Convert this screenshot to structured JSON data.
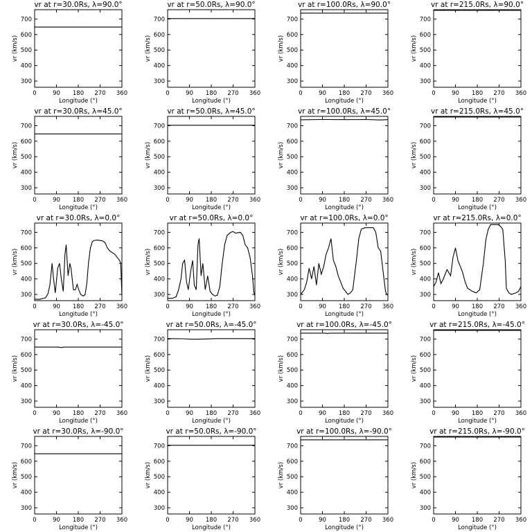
{
  "xlabel": "Longitude (°)",
  "ylabel": "vr (km/s)",
  "xticks": [
    0,
    90,
    180,
    270,
    360
  ],
  "yticks": [
    300,
    400,
    500,
    600,
    700
  ],
  "xlim": [
    0,
    360
  ],
  "ylim": [
    260,
    760
  ],
  "radii": [
    "30.0",
    "50.0",
    "100.0",
    "215.0"
  ],
  "latitudes": [
    "90.0",
    "45.0",
    "0.0",
    "-45.0",
    "-90.0"
  ],
  "chart_data": [
    {
      "type": "line",
      "title": "vr at r=30.0Rs, λ=90.0°",
      "x": [
        0,
        360
      ],
      "y": [
        648,
        648
      ],
      "xlim": [
        0,
        360
      ],
      "ylim": [
        260,
        760
      ]
    },
    {
      "type": "line",
      "title": "vr at r=50.0Rs, λ=90.0°",
      "x": [
        0,
        360
      ],
      "y": [
        703,
        703
      ],
      "xlim": [
        0,
        360
      ],
      "ylim": [
        260,
        760
      ]
    },
    {
      "type": "line",
      "title": "vr at r=100.0Rs, λ=90.0°",
      "x": [
        0,
        360
      ],
      "y": [
        738,
        738
      ],
      "xlim": [
        0,
        360
      ],
      "ylim": [
        260,
        760
      ]
    },
    {
      "type": "line",
      "title": "vr at r=215.0Rs, λ=90.0°",
      "x": [
        0,
        360
      ],
      "y": [
        756,
        756
      ],
      "xlim": [
        0,
        360
      ],
      "ylim": [
        260,
        760
      ]
    },
    {
      "type": "line",
      "title": "vr at r=30.0Rs, λ=45.0°",
      "x": [
        0,
        360
      ],
      "y": [
        647,
        647
      ],
      "xlim": [
        0,
        360
      ],
      "ylim": [
        260,
        760
      ]
    },
    {
      "type": "line",
      "title": "vr at r=50.0Rs, λ=45.0°",
      "x": [
        0,
        360
      ],
      "y": [
        703,
        703
      ],
      "xlim": [
        0,
        360
      ],
      "ylim": [
        260,
        760
      ]
    },
    {
      "type": "line",
      "title": "vr at r=100.0Rs, λ=45.0°",
      "x": [
        0,
        90,
        180,
        270,
        330,
        360
      ],
      "y": [
        738,
        740,
        739,
        740,
        737,
        739
      ],
      "xlim": [
        0,
        360
      ],
      "ylim": [
        260,
        760
      ]
    },
    {
      "type": "line",
      "title": "vr at r=215.0Rs, λ=45.0°",
      "x": [
        0,
        360
      ],
      "y": [
        756,
        756
      ],
      "xlim": [
        0,
        360
      ],
      "ylim": [
        260,
        760
      ]
    },
    {
      "type": "line",
      "title": "vr at r=30.0Rs, λ=0.0°",
      "xlim": [
        0,
        360
      ],
      "ylim": [
        260,
        760
      ],
      "x": [
        0,
        20,
        35,
        45,
        55,
        63,
        72,
        78,
        85,
        95,
        103,
        110,
        118,
        125,
        130,
        138,
        145,
        150,
        160,
        168,
        175,
        182,
        190,
        200,
        208,
        215,
        222,
        230,
        238,
        245,
        260,
        280,
        290,
        300,
        310,
        320,
        330,
        340,
        350,
        355,
        360
      ],
      "y": [
        270,
        268,
        275,
        278,
        305,
        360,
        500,
        400,
        310,
        470,
        500,
        400,
        320,
        560,
        620,
        420,
        500,
        470,
        330,
        330,
        365,
        330,
        300,
        290,
        298,
        370,
        500,
        600,
        640,
        648,
        650,
        645,
        635,
        600,
        580,
        570,
        560,
        540,
        520,
        500,
        290
      ]
    },
    {
      "type": "line",
      "title": "vr at r=50.0Rs, λ=0.0°",
      "xlim": [
        0,
        360
      ],
      "ylim": [
        260,
        760
      ],
      "x": [
        0,
        20,
        35,
        45,
        55,
        62,
        70,
        78,
        85,
        95,
        103,
        110,
        118,
        125,
        130,
        138,
        145,
        155,
        165,
        175,
        185,
        195,
        205,
        215,
        225,
        235,
        245,
        260,
        270,
        280,
        300,
        310,
        320,
        330,
        340,
        350,
        355,
        360
      ],
      "y": [
        275,
        275,
        285,
        330,
        400,
        500,
        520,
        380,
        330,
        450,
        520,
        360,
        330,
        620,
        660,
        420,
        500,
        330,
        420,
        320,
        300,
        290,
        295,
        350,
        500,
        620,
        680,
        700,
        705,
        695,
        700,
        680,
        620,
        600,
        540,
        420,
        320,
        290
      ]
    },
    {
      "type": "line",
      "title": "vr at r=100.0Rs, λ=0.0°",
      "xlim": [
        0,
        360
      ],
      "ylim": [
        260,
        760
      ],
      "x": [
        0,
        15,
        25,
        35,
        45,
        55,
        65,
        75,
        85,
        95,
        105,
        115,
        125,
        135,
        145,
        155,
        165,
        175,
        185,
        195,
        205,
        215,
        230,
        240,
        250,
        265,
        280,
        300,
        310,
        320,
        330,
        340,
        350,
        355,
        360
      ],
      "y": [
        300,
        330,
        380,
        470,
        400,
        480,
        360,
        500,
        430,
        480,
        560,
        600,
        660,
        520,
        480,
        420,
        380,
        340,
        320,
        300,
        310,
        330,
        520,
        660,
        720,
        730,
        730,
        730,
        700,
        600,
        580,
        450,
        320,
        300,
        295
      ]
    },
    {
      "type": "line",
      "title": "vr at r=215.0Rs, λ=0.0°",
      "xlim": [
        0,
        360
      ],
      "ylim": [
        260,
        760
      ],
      "x": [
        0,
        10,
        20,
        30,
        40,
        55,
        70,
        80,
        90,
        100,
        110,
        120,
        130,
        140,
        150,
        160,
        175,
        190,
        205,
        215,
        225,
        235,
        245,
        255,
        265,
        275,
        285,
        295,
        300,
        310,
        320,
        330,
        340,
        350,
        360
      ],
      "y": [
        350,
        380,
        440,
        370,
        400,
        460,
        420,
        540,
        600,
        520,
        480,
        440,
        380,
        340,
        330,
        320,
        310,
        330,
        500,
        650,
        720,
        750,
        750,
        750,
        750,
        740,
        720,
        520,
        340,
        310,
        300,
        305,
        310,
        320,
        350
      ]
    },
    {
      "type": "line",
      "title": "vr at r=30.0Rs, λ=-45.0°",
      "x": [
        0,
        100,
        110,
        120,
        360
      ],
      "y": [
        648,
        648,
        645,
        648,
        648
      ],
      "xlim": [
        0,
        360
      ],
      "ylim": [
        260,
        760
      ]
    },
    {
      "type": "line",
      "title": "vr at r=50.0Rs, λ=-45.0°",
      "x": [
        0,
        60,
        100,
        150,
        200,
        360
      ],
      "y": [
        703,
        702,
        699,
        700,
        703,
        703
      ],
      "xlim": [
        0,
        360
      ],
      "ylim": [
        260,
        760
      ]
    },
    {
      "type": "line",
      "title": "vr at r=100.0Rs, λ=-45.0°",
      "x": [
        0,
        100,
        110,
        120,
        360
      ],
      "y": [
        738,
        738,
        736,
        738,
        738
      ],
      "xlim": [
        0,
        360
      ],
      "ylim": [
        260,
        760
      ]
    },
    {
      "type": "line",
      "title": "vr at r=215.0Rs, λ=-45.0°",
      "x": [
        0,
        360
      ],
      "y": [
        756,
        756
      ],
      "xlim": [
        0,
        360
      ],
      "ylim": [
        260,
        760
      ]
    },
    {
      "type": "line",
      "title": "vr at r=30.0Rs, λ=-90.0°",
      "x": [
        0,
        360
      ],
      "y": [
        648,
        648
      ],
      "xlim": [
        0,
        360
      ],
      "ylim": [
        260,
        760
      ]
    },
    {
      "type": "line",
      "title": "vr at r=50.0Rs, λ=-90.0°",
      "x": [
        0,
        360
      ],
      "y": [
        703,
        703
      ],
      "xlim": [
        0,
        360
      ],
      "ylim": [
        260,
        760
      ]
    },
    {
      "type": "line",
      "title": "vr at r=100.0Rs, λ=-90.0°",
      "x": [
        0,
        360
      ],
      "y": [
        738,
        738
      ],
      "xlim": [
        0,
        360
      ],
      "ylim": [
        260,
        760
      ]
    },
    {
      "type": "line",
      "title": "vr at r=215.0Rs, λ=-90.0°",
      "x": [
        0,
        360
      ],
      "y": [
        756,
        756
      ],
      "xlim": [
        0,
        360
      ],
      "ylim": [
        260,
        760
      ]
    }
  ]
}
